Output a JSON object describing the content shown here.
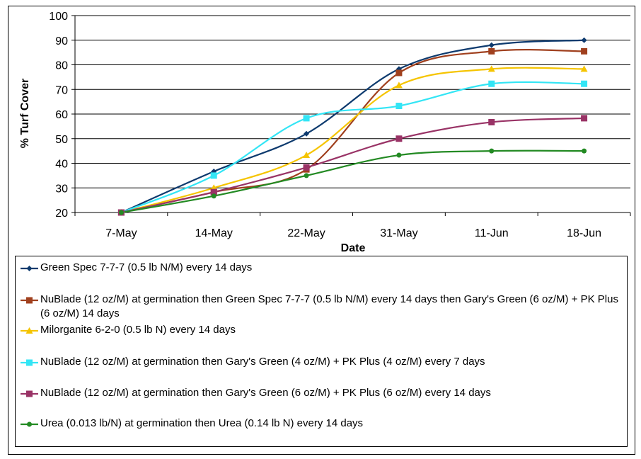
{
  "chart_data": {
    "type": "line",
    "xlabel": "Date",
    "ylabel": "% Turf Cover",
    "categories": [
      "7-May",
      "14-May",
      "22-May",
      "31-May",
      "11-Jun",
      "18-Jun"
    ],
    "ylim": [
      20,
      100
    ],
    "yticks": [
      20,
      30,
      40,
      50,
      60,
      70,
      80,
      90,
      100
    ],
    "grid": true,
    "smooth": true,
    "legend_position": "bottom",
    "series": [
      {
        "name": "Green Spec 7-7-7 (0.5 lb N/M) every 14 days",
        "color": "#0d3a6e",
        "marker": "diamond",
        "values": [
          20,
          36.7,
          52,
          78.3,
          88,
          90
        ]
      },
      {
        "name": "NuBlade (12 oz/M) at germination then Green Spec 7-7-7 (0.5 lb N/M) every 14 days then Gary's Green (6 oz/M) + PK Plus (6 oz/M) 14 days",
        "color": "#a0401e",
        "marker": "square",
        "values": [
          20,
          28.3,
          37.5,
          76.7,
          85.5,
          85.5
        ]
      },
      {
        "name": "Milorganite 6-2-0 (0.5 lb N) every 14 days",
        "color": "#f5c400",
        "marker": "triangle",
        "values": [
          20,
          30,
          43.3,
          71.7,
          78.3,
          78.3
        ]
      },
      {
        "name": "NuBlade (12 oz/M) at germination then Gary's Green (4 oz/M) + PK Plus (4 oz/M) every 7 days",
        "color": "#33e5f5",
        "marker": "square",
        "values": [
          20,
          35,
          58.3,
          63.3,
          72.3,
          72.3
        ]
      },
      {
        "name": "NuBlade (12 oz/M) at germination then Gary's Green (6 oz/M) + PK Plus (6 oz/M) every 14 days",
        "color": "#993366",
        "marker": "square",
        "values": [
          20,
          28.3,
          38.3,
          50,
          56.7,
          58.3
        ]
      },
      {
        "name": "Urea (0.013 lb/N) at germination then Urea (0.14 lb N) every 14 days",
        "color": "#238a23",
        "marker": "circle",
        "values": [
          20,
          26.7,
          35,
          43.3,
          45,
          45
        ]
      }
    ]
  }
}
